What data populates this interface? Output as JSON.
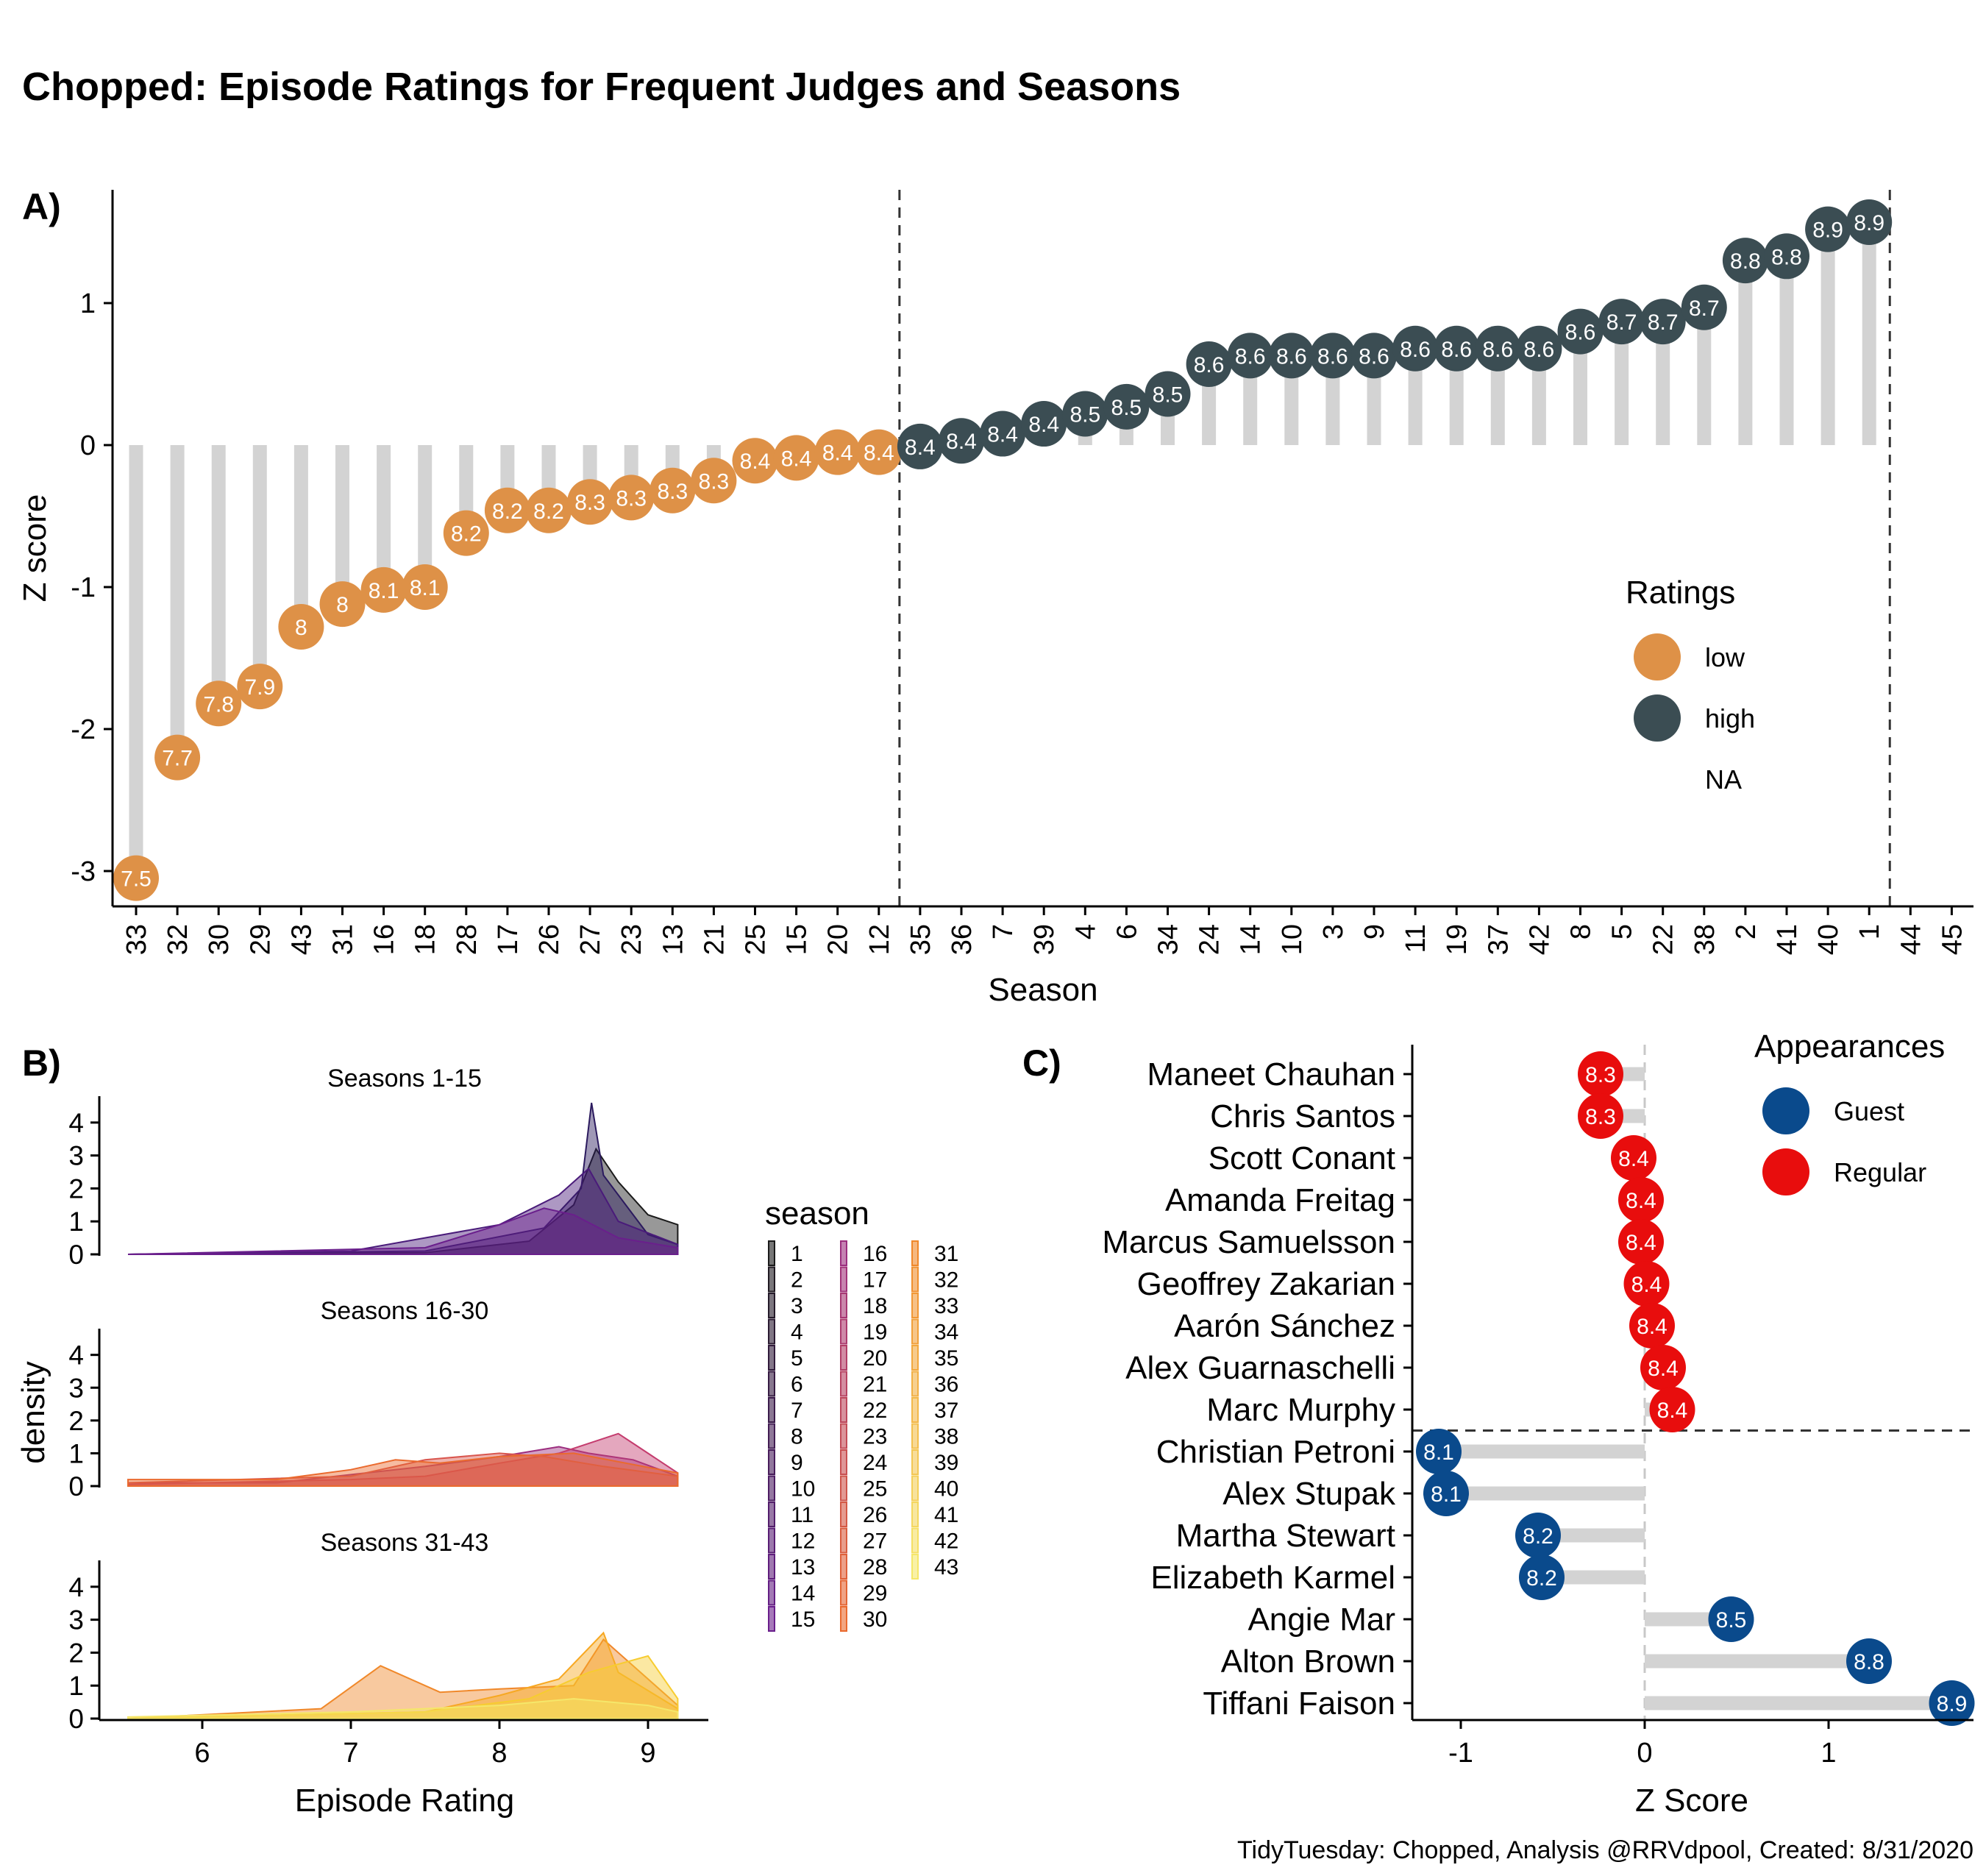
{
  "title": "Chopped: Episode Ratings for Frequent Judges and Seasons",
  "caption": "TidyTuesday: Chopped, Analysis @RRVdpool, Created: 8/31/2020",
  "colors": {
    "low": "#DE9147",
    "high": "#3B4D53",
    "stem": "#D3D3D3",
    "guest": "#0A4A8C",
    "regular": "#E80D0D"
  },
  "chart_data": [
    {
      "tag": "A)",
      "type": "lollipop",
      "xlabel": "Season",
      "ylabel": "Z score",
      "ylim": [
        -3.2,
        1.75
      ],
      "yticks": [
        -3,
        -2,
        -1,
        0,
        1
      ],
      "legend": {
        "title": "Ratings",
        "position": "right",
        "items": [
          {
            "label": "low",
            "key": "low"
          },
          {
            "label": "high",
            "key": "high"
          },
          {
            "label": "NA",
            "key": "na"
          }
        ]
      },
      "points": [
        {
          "season": "33",
          "z": -3.05,
          "rating": "7.5",
          "group": "low"
        },
        {
          "season": "32",
          "z": -2.2,
          "rating": "7.7",
          "group": "low"
        },
        {
          "season": "30",
          "z": -1.82,
          "rating": "7.8",
          "group": "low"
        },
        {
          "season": "29",
          "z": -1.7,
          "rating": "7.9",
          "group": "low"
        },
        {
          "season": "43",
          "z": -1.28,
          "rating": "8",
          "group": "low"
        },
        {
          "season": "31",
          "z": -1.12,
          "rating": "8",
          "group": "low"
        },
        {
          "season": "16",
          "z": -1.02,
          "rating": "8.1",
          "group": "low"
        },
        {
          "season": "18",
          "z": -1.0,
          "rating": "8.1",
          "group": "low"
        },
        {
          "season": "28",
          "z": -0.62,
          "rating": "8.2",
          "group": "low"
        },
        {
          "season": "17",
          "z": -0.46,
          "rating": "8.2",
          "group": "low"
        },
        {
          "season": "26",
          "z": -0.46,
          "rating": "8.2",
          "group": "low"
        },
        {
          "season": "27",
          "z": -0.4,
          "rating": "8.3",
          "group": "low"
        },
        {
          "season": "23",
          "z": -0.37,
          "rating": "8.3",
          "group": "low"
        },
        {
          "season": "13",
          "z": -0.32,
          "rating": "8.3",
          "group": "low"
        },
        {
          "season": "21",
          "z": -0.25,
          "rating": "8.3",
          "group": "low"
        },
        {
          "season": "25",
          "z": -0.11,
          "rating": "8.4",
          "group": "low"
        },
        {
          "season": "15",
          "z": -0.09,
          "rating": "8.4",
          "group": "low"
        },
        {
          "season": "20",
          "z": -0.05,
          "rating": "8.4",
          "group": "low"
        },
        {
          "season": "12",
          "z": -0.05,
          "rating": "8.4",
          "group": "low"
        },
        {
          "season": "35",
          "z": -0.01,
          "rating": "8.4",
          "group": "high"
        },
        {
          "season": "36",
          "z": 0.03,
          "rating": "8.4",
          "group": "high"
        },
        {
          "season": "7",
          "z": 0.08,
          "rating": "8.4",
          "group": "high"
        },
        {
          "season": "39",
          "z": 0.15,
          "rating": "8.4",
          "group": "high"
        },
        {
          "season": "4",
          "z": 0.22,
          "rating": "8.5",
          "group": "high"
        },
        {
          "season": "6",
          "z": 0.27,
          "rating": "8.5",
          "group": "high"
        },
        {
          "season": "34",
          "z": 0.36,
          "rating": "8.5",
          "group": "high"
        },
        {
          "season": "24",
          "z": 0.57,
          "rating": "8.6",
          "group": "high"
        },
        {
          "season": "14",
          "z": 0.63,
          "rating": "8.6",
          "group": "high"
        },
        {
          "season": "10",
          "z": 0.63,
          "rating": "8.6",
          "group": "high"
        },
        {
          "season": "3",
          "z": 0.63,
          "rating": "8.6",
          "group": "high"
        },
        {
          "season": "9",
          "z": 0.63,
          "rating": "8.6",
          "group": "high"
        },
        {
          "season": "11",
          "z": 0.68,
          "rating": "8.6",
          "group": "high"
        },
        {
          "season": "19",
          "z": 0.68,
          "rating": "8.6",
          "group": "high"
        },
        {
          "season": "37",
          "z": 0.68,
          "rating": "8.6",
          "group": "high"
        },
        {
          "season": "42",
          "z": 0.68,
          "rating": "8.6",
          "group": "high"
        },
        {
          "season": "8",
          "z": 0.8,
          "rating": "8.6",
          "group": "high"
        },
        {
          "season": "5",
          "z": 0.87,
          "rating": "8.7",
          "group": "high"
        },
        {
          "season": "22",
          "z": 0.87,
          "rating": "8.7",
          "group": "high"
        },
        {
          "season": "38",
          "z": 0.97,
          "rating": "8.7",
          "group": "high"
        },
        {
          "season": "2",
          "z": 1.3,
          "rating": "8.8",
          "group": "high"
        },
        {
          "season": "41",
          "z": 1.33,
          "rating": "8.8",
          "group": "high"
        },
        {
          "season": "40",
          "z": 1.52,
          "rating": "8.9",
          "group": "high"
        },
        {
          "season": "1",
          "z": 1.57,
          "rating": "8.9",
          "group": "high"
        },
        {
          "season": "44",
          "z": null,
          "rating": "",
          "group": "na"
        },
        {
          "season": "45",
          "z": null,
          "rating": "",
          "group": "na"
        }
      ],
      "vlines_after_index": [
        18,
        42
      ]
    },
    {
      "tag": "B)",
      "type": "area",
      "xlabel": "Episode Rating",
      "ylabel": "density",
      "xlim": [
        5.4,
        9.4
      ],
      "xticks": [
        6,
        7,
        8,
        9
      ],
      "yticks": [
        0,
        1,
        2,
        3,
        4
      ],
      "ylim": [
        0,
        4.8
      ],
      "legend": {
        "title": "season",
        "columns": [
          [
            "1",
            "2",
            "3",
            "4",
            "5",
            "6",
            "7",
            "8",
            "9",
            "10",
            "11",
            "12",
            "13",
            "14",
            "15"
          ],
          [
            "16",
            "17",
            "18",
            "19",
            "20",
            "21",
            "22",
            "23",
            "24",
            "25",
            "26",
            "27",
            "28",
            "29",
            "30"
          ],
          [
            "31",
            "32",
            "33",
            "34",
            "35",
            "36",
            "37",
            "38",
            "39",
            "40",
            "41",
            "42",
            "43"
          ]
        ]
      },
      "facets": [
        {
          "label": "Seasons 1-15",
          "series": [
            {
              "name": "1",
              "x": [
                5.5,
                7.5,
                8.2,
                8.5,
                8.65,
                8.8,
                9.0,
                9.2
              ],
              "y": [
                0.0,
                0.05,
                0.4,
                1.5,
                3.2,
                2.2,
                1.2,
                0.9
              ]
            },
            {
              "name": "5",
              "x": [
                5.5,
                7.5,
                8.3,
                8.55,
                8.62,
                8.7,
                9.0,
                9.2
              ],
              "y": [
                0.0,
                0.1,
                0.8,
                2.0,
                4.6,
                2.4,
                0.6,
                0.3
              ]
            },
            {
              "name": "10",
              "x": [
                5.5,
                7.0,
                8.0,
                8.4,
                8.6,
                8.8,
                9.2
              ],
              "y": [
                0.0,
                0.1,
                0.9,
                1.8,
                2.6,
                1.0,
                0.3
              ]
            },
            {
              "name": "15",
              "x": [
                5.5,
                7.5,
                8.0,
                8.3,
                8.5,
                8.8,
                9.2
              ],
              "y": [
                0.0,
                0.2,
                0.9,
                1.4,
                1.2,
                0.5,
                0.2
              ]
            }
          ]
        },
        {
          "label": "Seasons 16-30",
          "series": [
            {
              "name": "16",
              "x": [
                5.5,
                6.5,
                7.5,
                8.0,
                8.4,
                8.6,
                8.9,
                9.2
              ],
              "y": [
                0.1,
                0.1,
                0.6,
                0.9,
                1.2,
                1.0,
                0.8,
                0.3
              ]
            },
            {
              "name": "22",
              "x": [
                5.5,
                7.0,
                7.5,
                8.0,
                8.4,
                8.8,
                8.9,
                9.2
              ],
              "y": [
                0.05,
                0.2,
                0.3,
                0.7,
                1.0,
                1.6,
                1.3,
                0.4
              ]
            },
            {
              "name": "26",
              "x": [
                5.5,
                7.0,
                7.5,
                8.0,
                8.3,
                8.7,
                9.2
              ],
              "y": [
                0.1,
                0.3,
                0.8,
                1.0,
                0.9,
                0.6,
                0.3
              ]
            },
            {
              "name": "30",
              "x": [
                5.5,
                6.5,
                7.0,
                7.3,
                7.6,
                8.0,
                8.5,
                9.2
              ],
              "y": [
                0.2,
                0.2,
                0.5,
                0.8,
                0.7,
                0.9,
                1.0,
                0.4
              ]
            }
          ]
        },
        {
          "label": "Seasons 31-43",
          "series": [
            {
              "name": "31",
              "x": [
                5.5,
                6.8,
                7.2,
                7.6,
                8.0,
                8.5,
                8.7,
                9.2
              ],
              "y": [
                0.0,
                0.3,
                1.6,
                0.8,
                0.9,
                1.0,
                2.4,
                0.4
              ]
            },
            {
              "name": "36",
              "x": [
                5.5,
                7.5,
                8.0,
                8.4,
                8.7,
                8.8,
                9.2
              ],
              "y": [
                0.0,
                0.2,
                0.7,
                1.2,
                2.6,
                1.4,
                0.3
              ]
            },
            {
              "name": "40",
              "x": [
                5.5,
                7.5,
                8.2,
                8.6,
                9.0,
                9.2
              ],
              "y": [
                0.0,
                0.2,
                0.6,
                1.4,
                1.9,
                0.6
              ]
            },
            {
              "name": "43",
              "x": [
                5.5,
                7.0,
                8.0,
                8.5,
                9.0,
                9.2
              ],
              "y": [
                0.05,
                0.2,
                0.4,
                0.6,
                0.4,
                0.2
              ]
            }
          ]
        }
      ]
    },
    {
      "tag": "C)",
      "type": "lollipop-horizontal",
      "xlabel": "Z Score",
      "xlim": [
        -1.25,
        1.78
      ],
      "xticks": [
        -1,
        0,
        1
      ],
      "legend": {
        "title": "Appearances",
        "items": [
          {
            "label": "Guest",
            "key": "guest"
          },
          {
            "label": "Regular",
            "key": "regular"
          }
        ]
      },
      "judges": [
        {
          "name": "Maneet Chauhan",
          "z": -0.24,
          "rating": "8.3",
          "type": "regular"
        },
        {
          "name": "Chris Santos",
          "z": -0.24,
          "rating": "8.3",
          "type": "regular"
        },
        {
          "name": "Scott Conant",
          "z": -0.06,
          "rating": "8.4",
          "type": "regular"
        },
        {
          "name": "Amanda Freitag",
          "z": -0.02,
          "rating": "8.4",
          "type": "regular"
        },
        {
          "name": "Marcus Samuelsson",
          "z": -0.02,
          "rating": "8.4",
          "type": "regular"
        },
        {
          "name": "Geoffrey Zakarian",
          "z": 0.01,
          "rating": "8.4",
          "type": "regular"
        },
        {
          "name": "Aarón Sánchez",
          "z": 0.04,
          "rating": "8.4",
          "type": "regular"
        },
        {
          "name": "Alex Guarnaschelli",
          "z": 0.1,
          "rating": "8.4",
          "type": "regular"
        },
        {
          "name": "Marc Murphy",
          "z": 0.15,
          "rating": "8.4",
          "type": "regular"
        },
        {
          "name": "Christian Petroni",
          "z": -1.12,
          "rating": "8.1",
          "type": "guest"
        },
        {
          "name": "Alex Stupak",
          "z": -1.08,
          "rating": "8.1",
          "type": "guest"
        },
        {
          "name": "Martha Stewart",
          "z": -0.58,
          "rating": "8.2",
          "type": "guest"
        },
        {
          "name": "Elizabeth Karmel",
          "z": -0.56,
          "rating": "8.2",
          "type": "guest"
        },
        {
          "name": "Angie Mar",
          "z": 0.47,
          "rating": "8.5",
          "type": "guest"
        },
        {
          "name": "Alton Brown",
          "z": 1.22,
          "rating": "8.8",
          "type": "guest"
        },
        {
          "name": "Tiffani Faison",
          "z": 1.67,
          "rating": "8.9",
          "type": "guest"
        }
      ]
    }
  ]
}
